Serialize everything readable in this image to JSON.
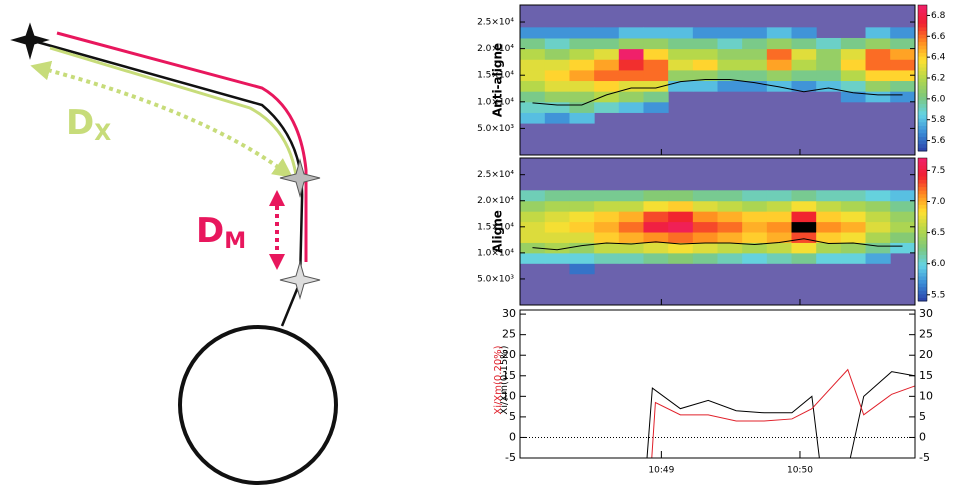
{
  "diagram": {
    "labels": [
      {
        "main": "D",
        "sub": "X"
      },
      {
        "main": "D",
        "sub": "M"
      }
    ]
  },
  "chart_data": [
    {
      "type": "heatmap",
      "ylabel": "Anti-aligne",
      "xlim": [
        47.98,
        50.83
      ],
      "x": [
        48.07,
        48.248,
        48.426,
        48.604,
        48.782,
        48.96,
        49.138,
        49.316,
        49.494,
        49.672,
        49.85,
        50.028,
        50.206,
        50.384,
        50.562,
        50.74
      ],
      "xticks": [
        {
          "value": 49,
          "label": "10:49"
        },
        {
          "value": 50,
          "label": "10:50"
        }
      ],
      "ylim": [
        0,
        28200
      ],
      "yticks": [
        {
          "value": 5000,
          "label": "5.0×10³"
        },
        {
          "value": 10000,
          "label": "1.0×10⁴"
        },
        {
          "value": 15000,
          "label": "1.5×10⁴"
        },
        {
          "value": 20000,
          "label": "2.0×10⁴"
        },
        {
          "value": 25000,
          "label": "2.5×10⁴"
        }
      ],
      "y_bins": [
        6000,
        8000,
        10000,
        12000,
        14000,
        16000,
        18000,
        20000,
        22000,
        24000
      ],
      "values": [
        [
          5.8,
          5.9,
          6.0,
          6.2,
          6.3,
          6.3,
          6.2,
          6.0,
          5.7
        ],
        [
          5.7,
          5.9,
          6.1,
          6.3,
          6.4,
          6.3,
          6.1,
          5.9,
          5.7
        ],
        [
          5.8,
          6.0,
          6.1,
          6.3,
          6.5,
          6.4,
          6.2,
          6.0,
          5.7
        ],
        [
          null,
          5.9,
          6.2,
          6.4,
          6.6,
          6.5,
          6.3,
          6.0,
          5.7
        ],
        [
          null,
          5.8,
          6.1,
          6.3,
          6.6,
          6.7,
          6.9,
          6.1,
          5.8
        ],
        [
          null,
          5.7,
          6.0,
          6.3,
          6.6,
          6.6,
          6.4,
          6.1,
          5.8
        ],
        [
          null,
          null,
          null,
          5.8,
          6.1,
          6.3,
          6.2,
          6.0,
          5.8
        ],
        [
          null,
          null,
          null,
          5.8,
          6.1,
          6.4,
          6.2,
          6.0,
          5.7
        ],
        [
          null,
          null,
          null,
          5.7,
          6.0,
          6.2,
          6.1,
          5.9,
          5.7
        ],
        [
          null,
          null,
          null,
          5.7,
          6.0,
          6.2,
          6.1,
          6.0,
          5.7
        ],
        [
          null,
          null,
          null,
          5.8,
          6.1,
          6.5,
          6.6,
          6.1,
          5.8
        ],
        [
          null,
          null,
          null,
          5.7,
          6.0,
          6.2,
          6.3,
          6.0,
          5.7
        ],
        [
          null,
          null,
          null,
          5.8,
          6.0,
          6.1,
          6.1,
          5.9,
          null
        ],
        [
          null,
          null,
          5.7,
          5.9,
          6.2,
          6.4,
          6.3,
          6.0,
          null
        ],
        [
          null,
          null,
          5.8,
          6.1,
          6.4,
          6.6,
          6.6,
          6.1,
          5.8
        ],
        [
          null,
          null,
          5.7,
          6.0,
          6.4,
          6.6,
          6.5,
          6.0,
          5.7
        ]
      ],
      "line": [
        9800,
        9400,
        9400,
        11300,
        12600,
        12600,
        13800,
        14200,
        14200,
        13600,
        12800,
        11900,
        12600,
        11700,
        11300,
        11300
      ],
      "line_color": "#000000",
      "background_color": "#6b62ad",
      "colormap": [
        "#2a3fa8",
        "#3a8ad6",
        "#63d3e6",
        "#7ec87a",
        "#b6d84a",
        "#ffe030",
        "#ff8a20",
        "#f02030",
        "#f0206a"
      ],
      "over_color": "#000000",
      "colorbar": {
        "lim": [
          5.5,
          6.9
        ],
        "ticks": [
          5.6,
          5.8,
          {
            "value": 6,
            "label": "6.0"
          },
          6.2,
          6.4,
          6.6,
          6.8
        ]
      }
    },
    {
      "type": "heatmap",
      "ylabel": "Aligne",
      "xlim": [
        47.98,
        50.83
      ],
      "x": [
        48.07,
        48.248,
        48.426,
        48.604,
        48.782,
        48.96,
        49.138,
        49.316,
        49.494,
        49.672,
        49.85,
        50.028,
        50.206,
        50.384,
        50.562,
        50.74
      ],
      "xticks": [
        {
          "value": 49,
          "label": "10:49"
        },
        {
          "value": 50,
          "label": "10:50"
        }
      ],
      "ylim": [
        0,
        28200
      ],
      "yticks": [
        {
          "value": 5000,
          "label": "5.0×10³"
        },
        {
          "value": 10000,
          "label": "1.0×10⁴"
        },
        {
          "value": 15000,
          "label": "1.5×10⁴"
        },
        {
          "value": 20000,
          "label": "2.0×10⁴"
        },
        {
          "value": 25000,
          "label": "2.5×10⁴"
        }
      ],
      "y_bins": [
        6000,
        8000,
        10000,
        12000,
        14000,
        16000,
        18000,
        20000,
        22000,
        24000
      ],
      "values": [
        [
          null,
          6.0,
          6.4,
          6.7,
          6.7,
          6.6,
          6.4,
          6.1,
          null
        ],
        [
          null,
          6.0,
          6.5,
          6.7,
          6.8,
          6.7,
          6.5,
          6.2,
          null
        ],
        [
          5.6,
          6.0,
          6.4,
          6.7,
          6.9,
          6.8,
          6.5,
          6.2,
          null
        ],
        [
          null,
          6.1,
          6.6,
          6.9,
          7.0,
          6.9,
          6.6,
          6.2,
          null
        ],
        [
          null,
          6.1,
          6.6,
          7.0,
          7.2,
          7.0,
          6.6,
          6.2,
          null
        ],
        [
          null,
          6.2,
          6.7,
          7.1,
          7.5,
          7.3,
          6.8,
          6.3,
          null
        ],
        [
          null,
          6.3,
          6.8,
          7.2,
          7.6,
          7.4,
          6.9,
          6.3,
          null
        ],
        [
          null,
          6.2,
          6.7,
          7.1,
          7.3,
          7.1,
          6.7,
          6.2,
          null
        ],
        [
          null,
          6.1,
          6.6,
          7.0,
          7.2,
          7.0,
          6.6,
          6.2,
          null
        ],
        [
          null,
          6.0,
          6.5,
          6.9,
          7.0,
          6.9,
          6.5,
          6.1,
          null
        ],
        [
          null,
          6.1,
          6.6,
          7.0,
          7.1,
          6.9,
          6.6,
          6.1,
          null
        ],
        [
          null,
          6.2,
          6.8,
          7.3,
          7.8,
          7.4,
          6.8,
          6.2,
          null
        ],
        [
          null,
          6.0,
          6.5,
          6.9,
          7.1,
          6.9,
          6.6,
          6.1,
          null
        ],
        [
          null,
          6.0,
          6.4,
          6.8,
          7.0,
          6.8,
          6.5,
          6.1,
          null
        ],
        [
          null,
          5.8,
          6.2,
          6.5,
          6.7,
          6.6,
          6.4,
          6.0,
          null
        ],
        [
          null,
          null,
          6.0,
          6.3,
          6.5,
          6.4,
          6.2,
          5.9,
          null
        ]
      ],
      "line": [
        11000,
        10600,
        11400,
        11900,
        11700,
        12100,
        11700,
        11900,
        11900,
        11600,
        12000,
        12700,
        11800,
        11900,
        11300,
        11300
      ],
      "line_color": "#000000",
      "background_color": "#6b62ad",
      "colormap": [
        "#2a3fa8",
        "#3a8ad6",
        "#63d3e6",
        "#7ec87a",
        "#b6d84a",
        "#ffe030",
        "#ff8a20",
        "#f02030",
        "#f0206a"
      ],
      "over_color": "#000000",
      "colorbar": {
        "lim": [
          5.4,
          7.7
        ],
        "ticks": [
          5.5,
          {
            "value": 6,
            "label": "6.0"
          },
          6.5,
          {
            "value": 7,
            "label": "7.0"
          },
          7.5
        ]
      }
    },
    {
      "type": "line",
      "xlim": [
        47.98,
        50.83
      ],
      "xticks": [
        {
          "value": 49,
          "label": "10:49"
        },
        {
          "value": 50,
          "label": "10:50"
        }
      ],
      "ylim": [
        -5,
        31
      ],
      "yticks": [
        -5,
        0,
        5,
        10,
        15,
        20,
        25,
        30
      ],
      "hline": 0,
      "series": [
        {
          "name": "Xi/Xm(0.15%)",
          "color": "#000000",
          "x": [
            48.885,
            48.935,
            49.137,
            49.338,
            49.54,
            49.741,
            49.942,
            50.086,
            50.158,
            50.331,
            50.46,
            50.662,
            50.827
          ],
          "values": [
            -10,
            12,
            7,
            9,
            6.5,
            6,
            6,
            10,
            -10,
            -10,
            10,
            16,
            15
          ]
        },
        {
          "name": "Xi/Xm(0.20%)",
          "color": "#e0202a",
          "x": [
            48.921,
            48.957,
            49.137,
            49.338,
            49.54,
            49.741,
            49.942,
            50.086,
            50.345,
            50.46,
            50.662,
            50.827
          ],
          "values": [
            -10,
            8.5,
            5.5,
            5.5,
            4,
            4,
            4.5,
            7,
            16.5,
            5.5,
            10.5,
            12.5
          ]
        }
      ]
    }
  ]
}
